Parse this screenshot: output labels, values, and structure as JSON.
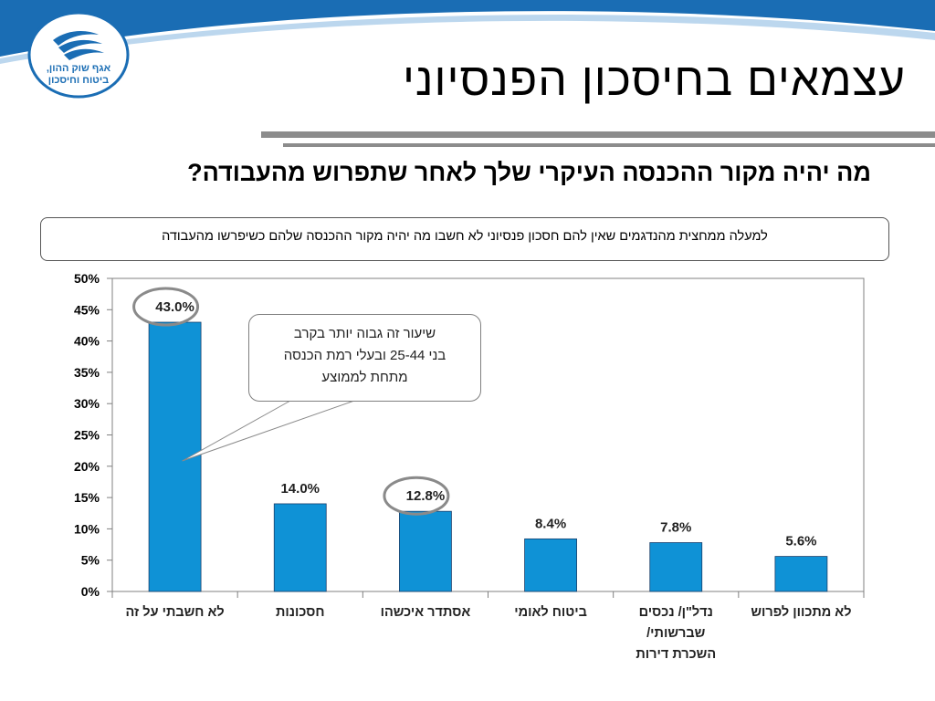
{
  "header": {
    "logo_text_line1": "אגף שוק ההון,",
    "logo_text_line2": "ביטוח וחיסכון",
    "title": "עצמאים בחיסכון הפנסיוני"
  },
  "question": "מה יהיה מקור ההכנסה העיקרי שלך לאחר שתפרוש מהעבודה?",
  "note": "למעלה ממחצית מהנדגמים שאין להם חסכון פנסיוני לא חשבו מה יהיה מקור ההכנסה שלהם כשיפרשו מהעבודה",
  "callout": {
    "line1": "שיעור זה גבוה יותר בקרב",
    "line2": "בני 25-44 ובעלי רמת הכנסה",
    "line3": "מתחת לממוצע"
  },
  "colors": {
    "bar": "#0f92d6",
    "wave_blue": "#1a6db4",
    "highlight_ring": "#8a8a8a",
    "title_rule": "#8c8c8c"
  },
  "chart_data": {
    "type": "bar",
    "title": "",
    "xlabel": "",
    "ylabel": "",
    "ylim": [
      0,
      50
    ],
    "yticks": [
      "0%",
      "5%",
      "10%",
      "15%",
      "20%",
      "25%",
      "30%",
      "35%",
      "40%",
      "45%",
      "50%"
    ],
    "categories": [
      [
        "לא חשבתי על זה"
      ],
      [
        "חסכונות"
      ],
      [
        "אסתדר איכשהו"
      ],
      [
        "ביטוח לאומי"
      ],
      [
        "נדל\"ן/ נכסים",
        "שברשותי/",
        "השכרת דירות"
      ],
      [
        "לא מתכוון לפרוש"
      ]
    ],
    "values": [
      43.0,
      14.0,
      12.8,
      8.4,
      7.8,
      5.6
    ],
    "value_labels": [
      "43.0%",
      "14.0%",
      "12.8%",
      "8.4%",
      "7.8%",
      "5.6%"
    ],
    "highlighted": [
      0,
      2
    ],
    "grid": false,
    "legend": "none"
  }
}
